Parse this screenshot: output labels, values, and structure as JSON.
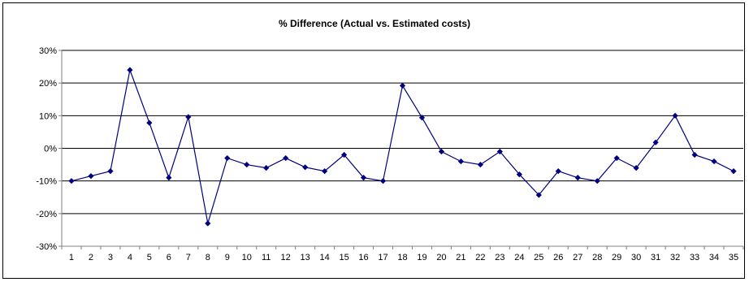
{
  "chart_data": {
    "type": "line",
    "title": "% Difference (Actual vs. Estimated costs)",
    "xlabel": "",
    "ylabel": "",
    "categories": [
      "1",
      "2",
      "3",
      "4",
      "5",
      "6",
      "7",
      "8",
      "9",
      "10",
      "11",
      "12",
      "13",
      "14",
      "15",
      "16",
      "17",
      "18",
      "19",
      "20",
      "21",
      "22",
      "23",
      "24",
      "25",
      "26",
      "27",
      "28",
      "29",
      "30",
      "31",
      "32",
      "33",
      "34",
      "35"
    ],
    "series": [
      {
        "values": [
          -10,
          -8.5,
          -7,
          24,
          7.8,
          -9,
          9.6,
          -23,
          -3,
          -5,
          -6,
          -3,
          -5.8,
          -7,
          -2,
          -9,
          -10,
          19.2,
          9.4,
          -1,
          -4,
          -5,
          -1,
          -8,
          -14.3,
          -7,
          -9,
          -10,
          -3,
          -6,
          1.8,
          10,
          -2,
          -4,
          -7
        ]
      }
    ],
    "ylim": [
      -30,
      30
    ],
    "yticks": [
      -30,
      -20,
      -10,
      0,
      10,
      20,
      30
    ],
    "ytick_labels": [
      "-30%",
      "-20%",
      "-10%",
      "0%",
      "10%",
      "20%",
      "30%"
    ],
    "grid": true,
    "legend": "none",
    "colors": {
      "series": "#000080",
      "grid": "#000000",
      "axis": "#808080"
    }
  }
}
